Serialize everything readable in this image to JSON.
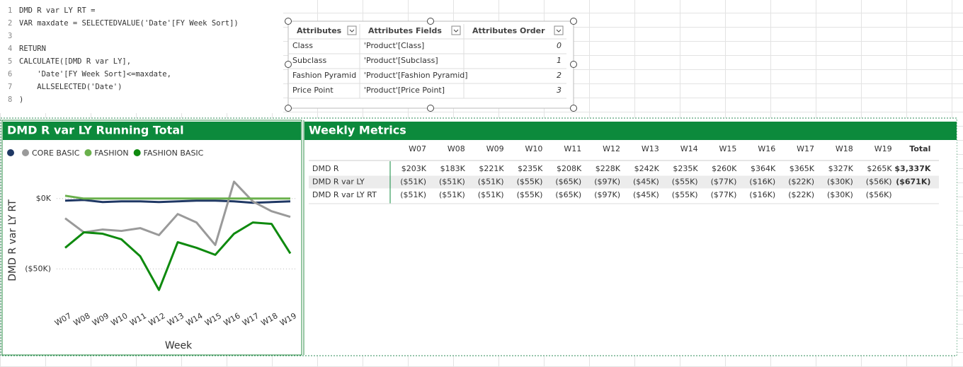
{
  "code": {
    "lines": [
      {
        "number": 1,
        "text": "DMD R var LY RT ="
      },
      {
        "number": 2,
        "text": "VAR maxdate = SELECTEDVALUE('Date'[FY Week Sort])"
      },
      {
        "number": 3
      },
      {
        "number": 4,
        "text": "RETURN"
      },
      {
        "number": 5,
        "text": "CALCULATE([DMD R var LY],"
      },
      {
        "number": 6,
        "text": "    'Date'[FY Week Sort]<=maxdate,"
      },
      {
        "number": 7,
        "text": "    ALLSELECTED('Date')"
      },
      {
        "number": 8,
        "text": ")"
      }
    ]
  },
  "attributes_table": {
    "columns": [
      "Attributes",
      "Attributes Fields",
      "Attributes Order"
    ],
    "rows": [
      [
        "Class",
        "'Product'[Class]",
        "0"
      ],
      [
        "Subclass",
        "'Product'[Subclass]",
        "1"
      ],
      [
        "Fashion Pyramid",
        "'Product'[Fashion Pyramid]",
        "2"
      ],
      [
        "Price Point",
        "'Product'[Price Point]",
        "3"
      ]
    ]
  },
  "chart_data": {
    "type": "line",
    "title": "DMD R var LY Running Total",
    "x_label": "Week",
    "y_label": "DMD R var LY RT",
    "categories": [
      "W07",
      "W08",
      "W09",
      "W10",
      "W11",
      "W12",
      "W13",
      "W14",
      "W15",
      "W16",
      "W17",
      "W18",
      "W19"
    ],
    "series": [
      {
        "color": "#1f3864",
        "values": [
          -1.5,
          -1,
          -2.5,
          -2,
          -2,
          -2.5,
          -2,
          -1.5,
          -1.5,
          -2,
          -3,
          -2.5,
          -2
        ]
      },
      {
        "name": "CORE BASIC",
        "color": "#9a9a9a",
        "values": [
          -14,
          -24,
          -22,
          -23,
          -21,
          -26,
          -11,
          -17,
          -33,
          12,
          -2,
          -9,
          -13
        ]
      },
      {
        "name": "FASHION",
        "color": "#6ab04c",
        "values": [
          2,
          0,
          0,
          0,
          0,
          0,
          0,
          0,
          0,
          0,
          0,
          0,
          0
        ]
      },
      {
        "name": "FASHION BASIC",
        "color": "#0f8a0f",
        "values": [
          -35,
          -24,
          -25,
          -29,
          -41,
          -65,
          -31,
          -35,
          -40,
          -25,
          -17,
          -18,
          -39
        ]
      }
    ],
    "ylim": [
      -75,
      18
    ],
    "yticks": [
      {
        "value": 0,
        "label": "$0K"
      },
      {
        "value": -50,
        "label": "($50K)"
      }
    ],
    "grid": true
  },
  "metrics_table": {
    "title": "Weekly Metrics",
    "columns": [
      "W07",
      "W08",
      "W09",
      "W10",
      "W11",
      "W12",
      "W13",
      "W14",
      "W15",
      "W16",
      "W17",
      "W18",
      "W19",
      "Total"
    ],
    "rows": [
      {
        "label": "DMD R",
        "cells": [
          "$203K",
          "$183K",
          "$221K",
          "$235K",
          "$208K",
          "$228K",
          "$242K",
          "$235K",
          "$260K",
          "$364K",
          "$365K",
          "$327K",
          "$265K",
          "$3,337K"
        ]
      },
      {
        "label": "DMD R var LY",
        "cells": [
          "($51K)",
          "($51K)",
          "($51K)",
          "($55K)",
          "($65K)",
          "($97K)",
          "($45K)",
          "($55K)",
          "($77K)",
          "($16K)",
          "($22K)",
          "($30K)",
          "($56K)",
          "($671K)"
        ]
      },
      {
        "label": "DMD R var LY RT",
        "cells": [
          "($51K)",
          "($51K)",
          "($51K)",
          "($55K)",
          "($65K)",
          "($97K)",
          "($45K)",
          "($55K)",
          "($77K)",
          "($16K)",
          "($22K)",
          "($30K)",
          "($56K)"
        ]
      }
    ]
  }
}
